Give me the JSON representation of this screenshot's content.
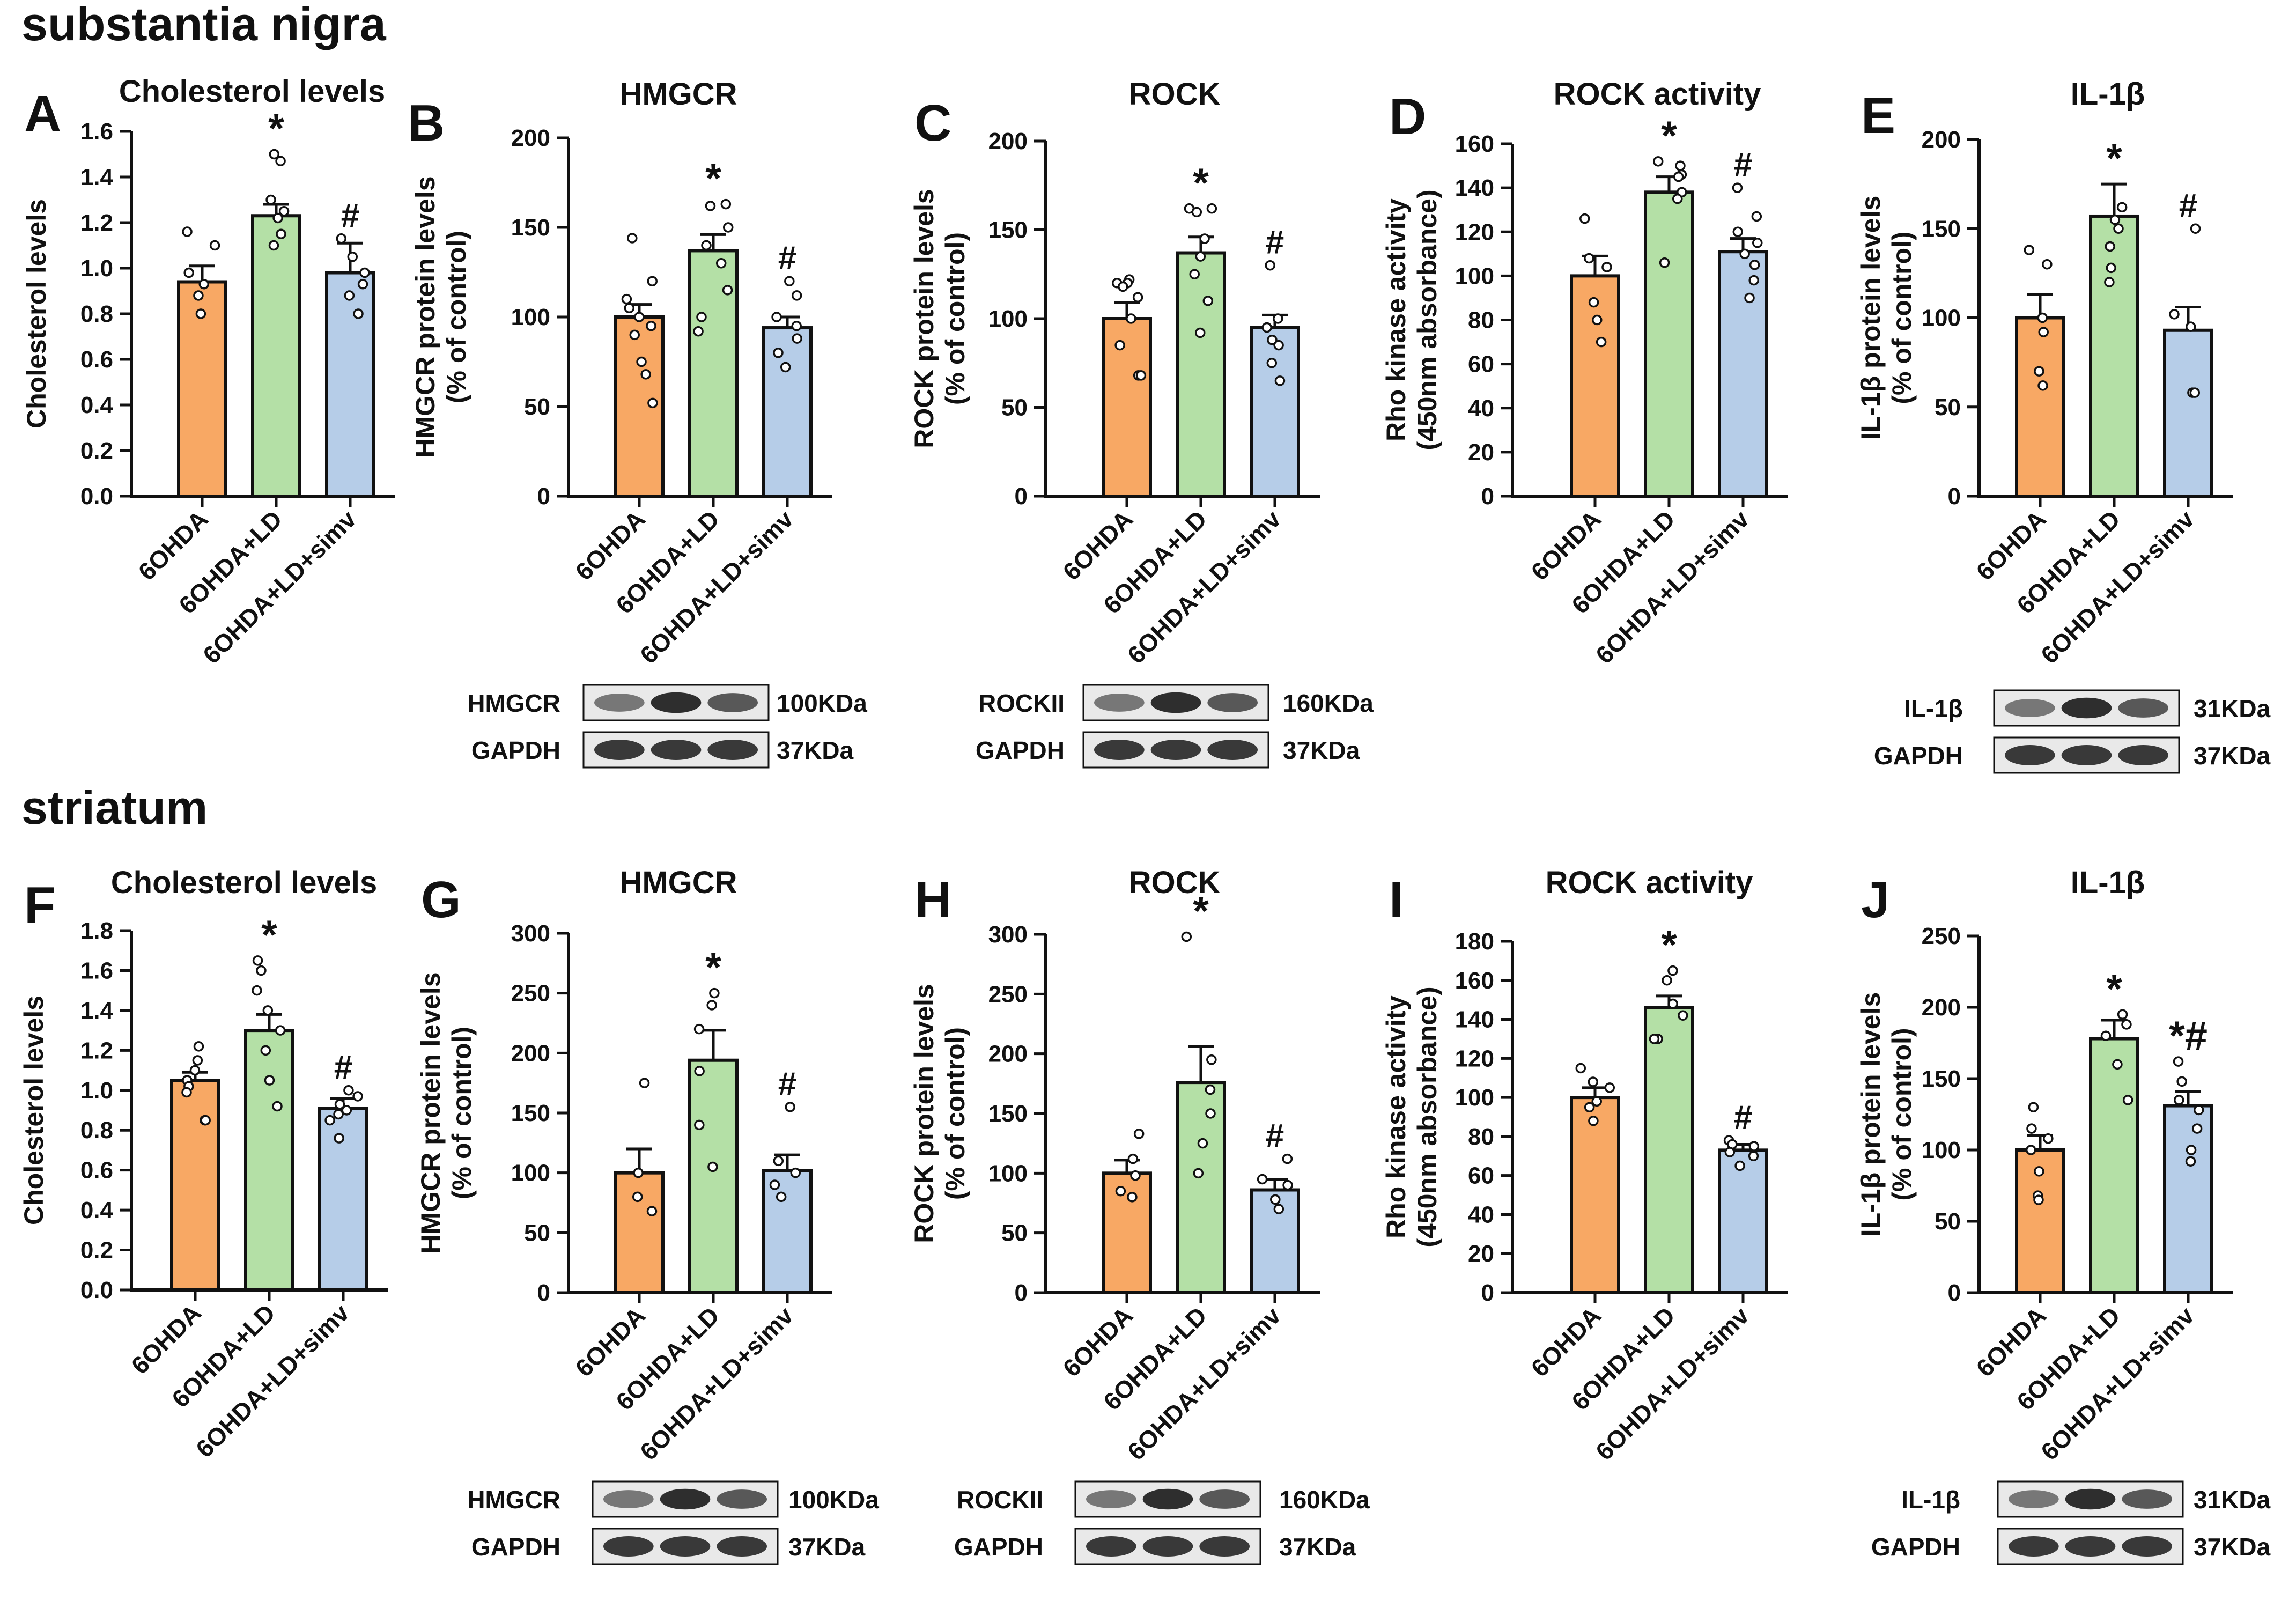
{
  "sections": {
    "top": "substantia nigra",
    "bottom": "striatum"
  },
  "colors": {
    "groups": [
      "#f8a864",
      "#b4e0a6",
      "#b6cde8"
    ],
    "axis": "#111111",
    "dots": "#ffffff"
  },
  "chart_data": [
    {
      "id": "A",
      "type": "bar",
      "title": "Cholesterol levels",
      "ylabel": [
        "Cholesterol levels"
      ],
      "categories": [
        "6OHDA",
        "6OHDA+LD",
        "6OHDA+LD+simv"
      ],
      "ylim": [
        0,
        1.6
      ],
      "yticks": [
        "0.0",
        "0.2",
        "0.4",
        "0.6",
        "0.8",
        "1.0",
        "1.2",
        "1.4",
        "1.6"
      ],
      "values": [
        0.94,
        1.23,
        0.98
      ],
      "sem": [
        0.07,
        0.05,
        0.13
      ],
      "points": [
        [
          1.16,
          1.1,
          0.98,
          0.93,
          0.88,
          0.8
        ],
        [
          1.5,
          1.47,
          1.3,
          1.25,
          1.22,
          1.15,
          1.1
        ],
        [
          1.13,
          1.05,
          0.98,
          0.93,
          0.88,
          0.8
        ]
      ],
      "annotations": [
        "",
        "*",
        "#"
      ]
    },
    {
      "id": "B",
      "type": "bar",
      "title": "HMGCR",
      "ylabel": [
        "HMGCR protein levels",
        "(% of control)"
      ],
      "categories": [
        "6OHDA",
        "6OHDA+LD",
        "6OHDA+LD+simv"
      ],
      "ylim": [
        0,
        200
      ],
      "yticks": [
        "0",
        "50",
        "100",
        "150",
        "200"
      ],
      "values": [
        100,
        137,
        94
      ],
      "sem": [
        7,
        9,
        6
      ],
      "points": [
        [
          144,
          120,
          110,
          105,
          100,
          95,
          90,
          75,
          68,
          52
        ],
        [
          163,
          162,
          150,
          140,
          130,
          115,
          100,
          92
        ],
        [
          120,
          112,
          100,
          95,
          88,
          80,
          72
        ]
      ],
      "annotations": [
        "",
        "*",
        "#"
      ],
      "blot": {
        "rows": [
          {
            "label": "HMGCR",
            "size": "100KDa"
          },
          {
            "label": "GAPDH",
            "size": "37KDa"
          }
        ]
      }
    },
    {
      "id": "C",
      "type": "bar",
      "title": "ROCK",
      "ylabel": [
        "ROCK protein levels",
        "(% of control)"
      ],
      "categories": [
        "6OHDA",
        "6OHDA+LD",
        "6OHDA+LD+simv"
      ],
      "ylim": [
        0,
        200
      ],
      "yticks": [
        "0",
        "50",
        "100",
        "150",
        "200"
      ],
      "values": [
        100,
        137,
        95
      ],
      "sem": [
        9,
        9,
        7
      ],
      "points": [
        [
          122,
          120,
          120,
          118,
          112,
          100,
          85,
          68,
          68
        ],
        [
          162,
          162,
          160,
          145,
          135,
          125,
          110,
          92
        ],
        [
          130,
          100,
          95,
          88,
          85,
          75,
          65
        ]
      ],
      "annotations": [
        "",
        "*",
        "#"
      ],
      "blot": {
        "rows": [
          {
            "label": "ROCKII",
            "size": "160KDa"
          },
          {
            "label": "GAPDH",
            "size": "37KDa"
          }
        ]
      }
    },
    {
      "id": "D",
      "type": "bar",
      "title": "ROCK activity",
      "ylabel": [
        "Rho kinase activity",
        "(450nm absorbance)"
      ],
      "categories": [
        "6OHDA",
        "6OHDA+LD",
        "6OHDA+LD+simv"
      ],
      "ylim": [
        0,
        160
      ],
      "yticks": [
        "0",
        "20",
        "40",
        "60",
        "80",
        "100",
        "120",
        "140",
        "160"
      ],
      "values": [
        100,
        138,
        111
      ],
      "sem": [
        9,
        7,
        6
      ],
      "points": [
        [
          126,
          108,
          104,
          88,
          80,
          70
        ],
        [
          152,
          150,
          146,
          145,
          138,
          135,
          106
        ],
        [
          140,
          127,
          120,
          115,
          110,
          105,
          98,
          90
        ]
      ],
      "annotations": [
        "",
        "*",
        "#"
      ]
    },
    {
      "id": "E",
      "type": "bar",
      "title": "IL-1β",
      "ylabel": [
        "IL-1β protein levels",
        "(% of control)"
      ],
      "categories": [
        "6OHDA",
        "6OHDA+LD",
        "6OHDA+LD+simv"
      ],
      "ylim": [
        0,
        200
      ],
      "yticks": [
        "0",
        "50",
        "100",
        "150",
        "200"
      ],
      "values": [
        100,
        157,
        93
      ],
      "sem": [
        13,
        18,
        13
      ],
      "points": [
        [
          138,
          130,
          100,
          92,
          70,
          62
        ],
        [
          162,
          155,
          150,
          140,
          128,
          120
        ],
        [
          150,
          102,
          95,
          58,
          58
        ]
      ],
      "annotations": [
        "",
        "*",
        "#"
      ],
      "blot": {
        "rows": [
          {
            "label": "IL-1β",
            "size": "31KDa"
          },
          {
            "label": "GAPDH",
            "size": "37KDa"
          }
        ]
      }
    },
    {
      "id": "F",
      "type": "bar",
      "title": "Cholesterol levels",
      "ylabel": [
        "Cholesterol levels"
      ],
      "categories": [
        "6OHDA",
        "6OHDA+LD",
        "6OHDA+LD+simv"
      ],
      "ylim": [
        0,
        1.8
      ],
      "yticks": [
        "0.0",
        "0.2",
        "0.4",
        "0.6",
        "0.8",
        "1.0",
        "1.2",
        "1.4",
        "1.6",
        "1.8"
      ],
      "values": [
        1.05,
        1.3,
        0.91
      ],
      "sem": [
        0.04,
        0.08,
        0.05
      ],
      "points": [
        [
          1.22,
          1.15,
          1.1,
          1.05,
          1.02,
          0.99,
          0.85,
          0.85
        ],
        [
          1.65,
          1.6,
          1.5,
          1.4,
          1.3,
          1.2,
          1.05,
          0.92
        ],
        [
          1.0,
          0.97,
          0.93,
          0.9,
          0.88,
          0.85,
          0.76
        ]
      ],
      "annotations": [
        "",
        "*",
        "#"
      ]
    },
    {
      "id": "G",
      "type": "bar",
      "title": "HMGCR",
      "ylabel": [
        "HMGCR protein levels",
        "(% of control)"
      ],
      "categories": [
        "6OHDA",
        "6OHDA+LD",
        "6OHDA+LD+simv"
      ],
      "ylim": [
        0,
        300
      ],
      "yticks": [
        "0",
        "50",
        "100",
        "150",
        "200",
        "250",
        "300"
      ],
      "values": [
        100,
        194,
        102
      ],
      "sem": [
        20,
        25,
        13
      ],
      "points": [
        [
          175,
          100,
          80,
          68
        ],
        [
          250,
          240,
          220,
          185,
          140,
          105
        ],
        [
          155,
          110,
          100,
          90,
          80
        ]
      ],
      "annotations": [
        "",
        "*",
        "#"
      ],
      "blot": {
        "rows": [
          {
            "label": "HMGCR",
            "size": "100KDa"
          },
          {
            "label": "GAPDH",
            "size": "37KDa"
          }
        ]
      }
    },
    {
      "id": "H",
      "type": "bar",
      "title": "ROCK",
      "ylabel": [
        "ROCK protein levels",
        "(% of control)"
      ],
      "categories": [
        "6OHDA",
        "6OHDA+LD",
        "6OHDA+LD+simv"
      ],
      "ylim": [
        0,
        300
      ],
      "yticks": [
        "0",
        "50",
        "100",
        "150",
        "200",
        "250",
        "300"
      ],
      "values": [
        100,
        176,
        86
      ],
      "sem": [
        11,
        30,
        9
      ],
      "points": [
        [
          133,
          112,
          98,
          85,
          80
        ],
        [
          298,
          195,
          170,
          150,
          125,
          100
        ],
        [
          112,
          95,
          90,
          78,
          70
        ]
      ],
      "annotations": [
        "",
        "*",
        "#"
      ],
      "blot": {
        "rows": [
          {
            "label": "ROCKII",
            "size": "160KDa"
          },
          {
            "label": "GAPDH",
            "size": "37KDa"
          }
        ]
      }
    },
    {
      "id": "I",
      "type": "bar",
      "title": "ROCK activity",
      "ylabel": [
        "Rho kinase activity",
        "(450nm absorbance)"
      ],
      "categories": [
        "6OHDA",
        "6OHDA+LD",
        "6OHDA+LD+simv"
      ],
      "ylim": [
        0,
        180
      ],
      "yticks": [
        "0",
        "20",
        "40",
        "60",
        "80",
        "100",
        "120",
        "140",
        "160",
        "180"
      ],
      "values": [
        100,
        146,
        73
      ],
      "sem": [
        5,
        6,
        3
      ],
      "points": [
        [
          115,
          108,
          105,
          98,
          95,
          88
        ],
        [
          165,
          160,
          148,
          142,
          130,
          130
        ],
        [
          78,
          76,
          75,
          72,
          70,
          65
        ]
      ],
      "annotations": [
        "",
        "*",
        "#"
      ]
    },
    {
      "id": "J",
      "type": "bar",
      "title": "IL-1β",
      "ylabel": [
        "IL-1β protein levels",
        "(% of control)"
      ],
      "categories": [
        "6OHDA",
        "6OHDA+LD",
        "6OHDA+LD+simv"
      ],
      "ylim": [
        0,
        250
      ],
      "yticks": [
        "0",
        "50",
        "100",
        "150",
        "200",
        "250"
      ],
      "values": [
        100,
        178,
        131
      ],
      "sem": [
        10,
        13,
        10
      ],
      "points": [
        [
          130,
          115,
          108,
          100,
          85,
          68,
          65
        ],
        [
          195,
          188,
          180,
          160,
          135
        ],
        [
          162,
          148,
          135,
          128,
          115,
          100,
          92
        ]
      ],
      "annotations": [
        "",
        "*",
        "*#"
      ],
      "blot": {
        "rows": [
          {
            "label": "IL-1β",
            "size": "31KDa"
          },
          {
            "label": "GAPDH",
            "size": "37KDa"
          }
        ]
      }
    }
  ]
}
